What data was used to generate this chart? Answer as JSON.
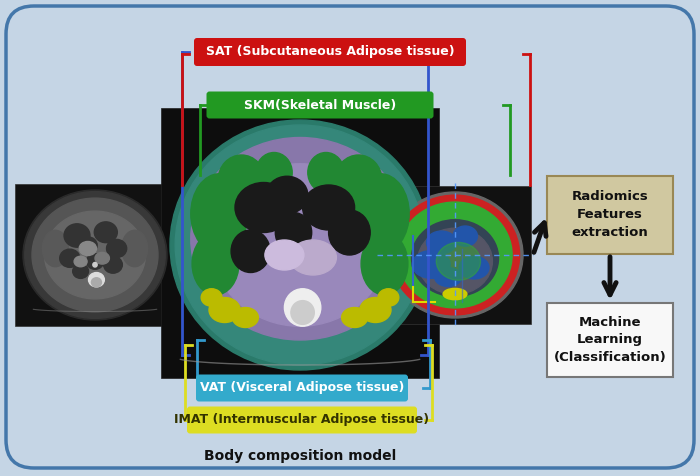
{
  "background_color": "#c5d5e5",
  "labels": {
    "sat": "SAT (Subcutaneous Adipose tissue)",
    "skm": "SKM(Skeletal Muscle)",
    "vat": "VAT (Visceral Adipose tissue)",
    "imat": "IMAT (Intermuscular Adipose tissue)",
    "body_comp": "Body composition model",
    "radiomics": "Radiomics\nFeatures\nextraction",
    "ml": "Machine\nLearning\n(Classification)"
  },
  "label_bg_colors": {
    "sat": "#cc1111",
    "skm": "#229922",
    "vat": "#33aacc",
    "imat": "#dddd22"
  },
  "bracket_colors": {
    "sat": "#cc1111",
    "skm": "#229922",
    "vat": "#3399cc",
    "imat": "#dddd22",
    "blue": "#3355cc"
  },
  "box_radiomics_bg": "#d0c8a0",
  "box_ml_bg": "#f8f8f8",
  "arrow_color": "#111111",
  "outer_edge": "#4477aa"
}
